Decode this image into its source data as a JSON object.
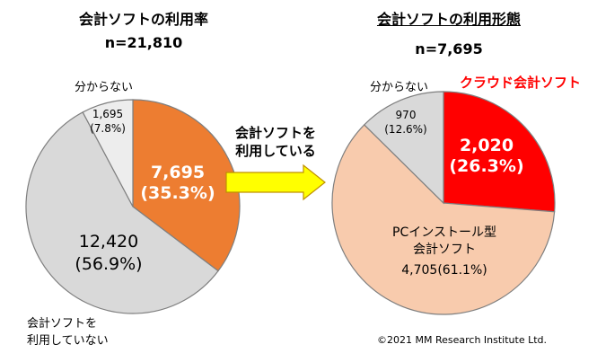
{
  "left": {
    "title": "会計ソフトの利用率",
    "n_label": "n=21,810"
  },
  "right": {
    "title": "会計ソフトの利用形態",
    "n_label": "n=7,695"
  },
  "arrow": {
    "line1": "会計ソフトを",
    "line2": "利用している"
  },
  "copyright": "©2021 MM Research Institute Ltd.",
  "colors": {
    "orange": "#ED7D31",
    "light_gray": "#EDEDED",
    "gray": "#D9D9D9",
    "red": "#FF0000",
    "peach": "#F8CBAD",
    "arrow_fill": "#FFFF00",
    "arrow_edge": "#BF9000",
    "pie_edge": "#7F7F7F"
  },
  "chart_data": [
    {
      "type": "pie",
      "title": "会計ソフトの利用率",
      "n": "n=21,810",
      "slices": [
        {
          "name": "",
          "value": 7695,
          "percent": 35.3,
          "value_text": "7,695",
          "percent_text": "(35.3%)"
        },
        {
          "name": "会計ソフトを利用していない",
          "name_line1": "会計ソフトを",
          "name_line2": "利用していない",
          "value": 12420,
          "percent": 56.9,
          "value_text": "12,420",
          "percent_text": "(56.9%)"
        },
        {
          "name": "分からない",
          "value": 1695,
          "percent": 7.8,
          "value_text": "1,695",
          "percent_text": "(7.8%)"
        }
      ]
    },
    {
      "type": "pie",
      "title": "会計ソフトの利用形態",
      "n": "n=7,695",
      "slices": [
        {
          "name": "クラウド会計ソフト",
          "value": 2020,
          "percent": 26.3,
          "value_text": "2,020",
          "percent_text": "(26.3%)"
        },
        {
          "name": "PCインストール型会計ソフト",
          "name_line1": "PCインストール型",
          "name_line2": "会計ソフト",
          "value": 4705,
          "percent": 61.1,
          "value_text": "4,705(61.1%)"
        },
        {
          "name": "分からない",
          "value": 970,
          "percent": 12.6,
          "value_text": "970",
          "percent_text": "(12.6%)"
        }
      ]
    }
  ]
}
